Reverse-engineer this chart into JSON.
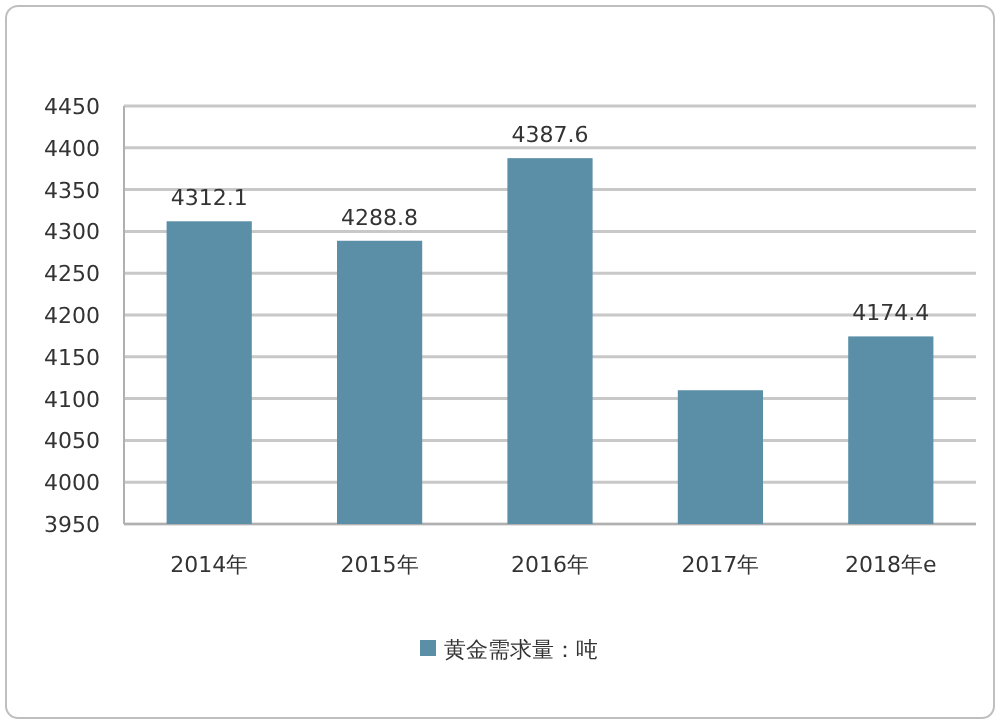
{
  "chart_data": {
    "type": "bar",
    "categories": [
      "2014年",
      "2015年",
      "2016年",
      "2017年",
      "2018年e"
    ],
    "series": [
      {
        "name": "黄金需求量：吨",
        "color": "#5b8fa8",
        "values": [
          4312.1,
          4288.8,
          4387.6,
          4110,
          4174.4
        ],
        "value_labels": [
          "4312.1",
          "4288.8",
          "4387.6",
          null,
          "4174.4"
        ]
      }
    ],
    "ylim": [
      3950,
      4450
    ],
    "yticks": [
      3950,
      4000,
      4050,
      4100,
      4150,
      4200,
      4250,
      4300,
      4350,
      4400,
      4450
    ],
    "grid": "y",
    "legend": "bottom"
  }
}
